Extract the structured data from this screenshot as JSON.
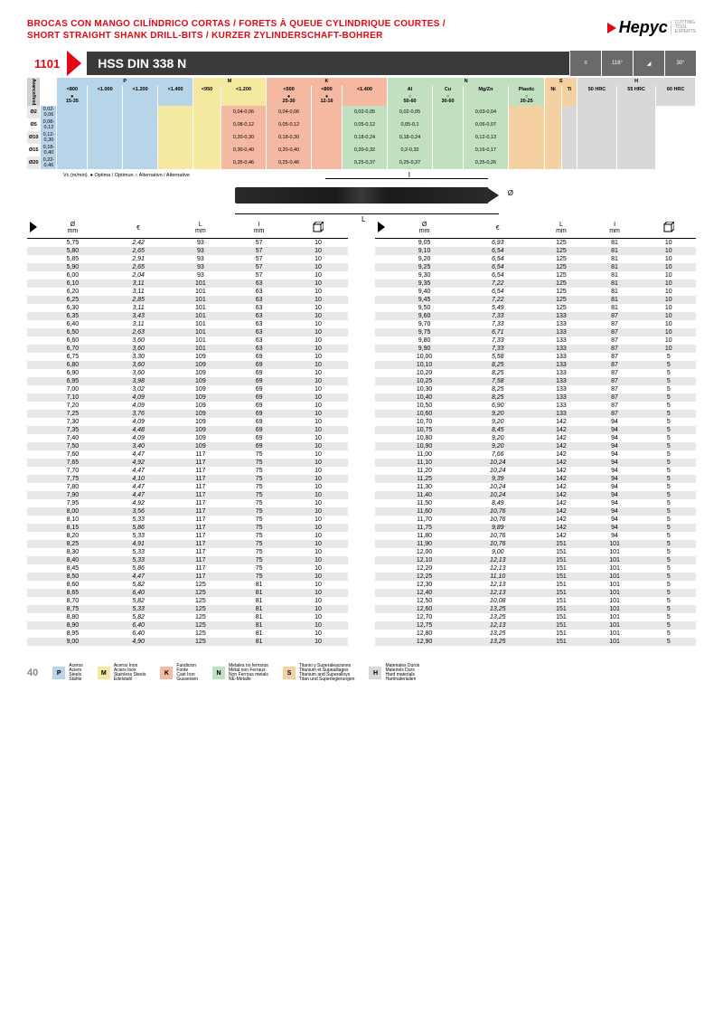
{
  "header": {
    "title_line1": "BROCAS CON MANGO CILÍNDRICO CORTAS / FORETS À QUEUE CYLINDRIQUE COURTES /",
    "title_line2": "SHORT STRAIGHT SHANK DRILL-BITS / KURZER ZYLINDERSCHAFT-BOHRER",
    "logo_text": "Hepyc",
    "logo_sub": "CUTTING\nTOOL\nEXPERTS"
  },
  "product": {
    "code": "1101",
    "name": "HSS DIN 338 N",
    "angle1": "118°",
    "angle2": "30°"
  },
  "spec_categories": {
    "P": {
      "color": "#b8d4e8",
      "sub": [
        "<800",
        "<1.000",
        "<1.200",
        "<1.400"
      ],
      "marks": [
        "●\n15-35",
        "",
        "",
        ""
      ]
    },
    "M": {
      "color": "#f5e8a0",
      "sub": [
        "<950",
        "<1.200"
      ],
      "marks": [
        "",
        ""
      ]
    },
    "K": {
      "color": "#f5b8a0",
      "sub": [
        "<500",
        "<800",
        "<1.400"
      ],
      "marks": [
        "●\n25-30",
        "●\n12-16",
        ""
      ]
    },
    "N": {
      "color": "#c0e0c0",
      "sub": [
        "Al",
        "Cu",
        "Mg/Zn",
        "Plastic"
      ],
      "marks": [
        "○\n50-60",
        "○\n30-60",
        "",
        "○\n20-25"
      ]
    },
    "S": {
      "color": "#f5d0a0",
      "sub": [
        "Ni",
        "Ti"
      ],
      "marks": [
        "",
        ""
      ]
    },
    "H": {
      "color": "#d8d8d8",
      "sub": [
        "50 HRC",
        "55 HRC",
        "60 HRC"
      ],
      "marks": [
        "",
        "",
        ""
      ]
    }
  },
  "feed_rows": [
    {
      "d": "Ø2",
      "P": "0,02-0,06",
      "K1": "0,04-0,06",
      "K2": "0,04-0,06",
      "N1": "0,02-0,05",
      "N2": "0,02-0,05",
      "N4": "0,03-0,04"
    },
    {
      "d": "Ø5",
      "P": "0,08-0,12",
      "K1": "0,08-0,12",
      "K2": "0,05-0,12",
      "N1": "0,05-0,12",
      "N2": "0,05-0,1",
      "N4": "0,06-0,07"
    },
    {
      "d": "Ø10",
      "P": "0,12-0,30",
      "K1": "0,20-0,30",
      "K2": "0,18-0,30",
      "N1": "0,18-0,24",
      "N2": "0,18-0,24",
      "N4": "0,12-0,13"
    },
    {
      "d": "Ø15",
      "P": "0,18-0,40",
      "K1": "0,30-0,40",
      "K2": "0,20-0,40",
      "N1": "0,20-0,32",
      "N2": "0,2-0,32",
      "N4": "0,16-0,17"
    },
    {
      "d": "Ø20",
      "P": "0,22-0,46",
      "K1": "0,35-0,46",
      "K2": "0,25-0,46",
      "N1": "0,25-0,37",
      "N2": "0,25-0,37",
      "N4": "0,25-0,26"
    }
  ],
  "note": "Vc (m/min). ● Optima / Optimun ○ Alternativo / Alternative",
  "feed_label": "Avance/feed",
  "table_headers": {
    "dia": "Ø\nmm",
    "euro": "€",
    "L": "L\nmm",
    "I": "I\nmm"
  },
  "left_data": [
    [
      "5,75",
      "2,42",
      "93",
      "57",
      "10"
    ],
    [
      "5,80",
      "2,65",
      "93",
      "57",
      "10"
    ],
    [
      "5,85",
      "2,91",
      "93",
      "57",
      "10"
    ],
    [
      "5,90",
      "2,65",
      "93",
      "57",
      "10"
    ],
    [
      "6,00",
      "2,04",
      "93",
      "57",
      "10"
    ],
    [
      "6,10",
      "3,11",
      "101",
      "63",
      "10"
    ],
    [
      "6,20",
      "3,11",
      "101",
      "63",
      "10"
    ],
    [
      "6,25",
      "2,85",
      "101",
      "63",
      "10"
    ],
    [
      "6,30",
      "3,11",
      "101",
      "63",
      "10"
    ],
    [
      "6,35",
      "3,43",
      "101",
      "63",
      "10"
    ],
    [
      "6,40",
      "3,11",
      "101",
      "63",
      "10"
    ],
    [
      "6,50",
      "2,63",
      "101",
      "63",
      "10"
    ],
    [
      "6,60",
      "3,60",
      "101",
      "63",
      "10"
    ],
    [
      "6,70",
      "3,60",
      "101",
      "63",
      "10"
    ],
    [
      "6,75",
      "3,30",
      "109",
      "69",
      "10"
    ],
    [
      "6,80",
      "3,60",
      "109",
      "69",
      "10"
    ],
    [
      "6,90",
      "3,60",
      "109",
      "69",
      "10"
    ],
    [
      "6,95",
      "3,98",
      "109",
      "69",
      "10"
    ],
    [
      "7,00",
      "3,02",
      "109",
      "69",
      "10"
    ],
    [
      "7,10",
      "4,09",
      "109",
      "69",
      "10"
    ],
    [
      "7,20",
      "4,09",
      "109",
      "69",
      "10"
    ],
    [
      "7,25",
      "3,76",
      "109",
      "69",
      "10"
    ],
    [
      "7,30",
      "4,09",
      "109",
      "69",
      "10"
    ],
    [
      "7,35",
      "4,48",
      "109",
      "69",
      "10"
    ],
    [
      "7,40",
      "4,09",
      "109",
      "69",
      "10"
    ],
    [
      "7,50",
      "3,40",
      "109",
      "69",
      "10"
    ],
    [
      "7,60",
      "4,47",
      "117",
      "75",
      "10"
    ],
    [
      "7,65",
      "4,92",
      "117",
      "75",
      "10"
    ],
    [
      "7,70",
      "4,47",
      "117",
      "75",
      "10"
    ],
    [
      "7,75",
      "4,10",
      "117",
      "75",
      "10"
    ],
    [
      "7,80",
      "4,47",
      "117",
      "75",
      "10"
    ],
    [
      "7,90",
      "4,47",
      "117",
      "75",
      "10"
    ],
    [
      "7,95",
      "4,92",
      "117",
      "75",
      "10"
    ],
    [
      "8,00",
      "3,56",
      "117",
      "75",
      "10"
    ],
    [
      "8,10",
      "5,33",
      "117",
      "75",
      "10"
    ],
    [
      "8,15",
      "5,86",
      "117",
      "75",
      "10"
    ],
    [
      "8,20",
      "5,33",
      "117",
      "75",
      "10"
    ],
    [
      "8,25",
      "4,91",
      "117",
      "75",
      "10"
    ],
    [
      "8,30",
      "5,33",
      "117",
      "75",
      "10"
    ],
    [
      "8,40",
      "5,33",
      "117",
      "75",
      "10"
    ],
    [
      "8,45",
      "5,86",
      "117",
      "75",
      "10"
    ],
    [
      "8,50",
      "4,47",
      "117",
      "75",
      "10"
    ],
    [
      "8,60",
      "5,82",
      "125",
      "81",
      "10"
    ],
    [
      "8,65",
      "6,40",
      "125",
      "81",
      "10"
    ],
    [
      "8,70",
      "5,82",
      "125",
      "81",
      "10"
    ],
    [
      "8,75",
      "5,33",
      "125",
      "81",
      "10"
    ],
    [
      "8,80",
      "5,82",
      "125",
      "81",
      "10"
    ],
    [
      "8,90",
      "6,40",
      "125",
      "81",
      "10"
    ],
    [
      "8,95",
      "6,40",
      "125",
      "81",
      "10"
    ],
    [
      "9,00",
      "4,90",
      "125",
      "81",
      "10"
    ]
  ],
  "right_data": [
    [
      "9,05",
      "6,93",
      "125",
      "81",
      "10"
    ],
    [
      "9,10",
      "6,54",
      "125",
      "81",
      "10"
    ],
    [
      "9,20",
      "6,54",
      "125",
      "81",
      "10"
    ],
    [
      "9,25",
      "6,54",
      "125",
      "81",
      "10"
    ],
    [
      "9,30",
      "6,54",
      "125",
      "81",
      "10"
    ],
    [
      "9,35",
      "7,22",
      "125",
      "81",
      "10"
    ],
    [
      "9,40",
      "6,54",
      "125",
      "81",
      "10"
    ],
    [
      "9,45",
      "7,22",
      "125",
      "81",
      "10"
    ],
    [
      "9,50",
      "5,49",
      "125",
      "81",
      "10"
    ],
    [
      "9,60",
      "7,33",
      "133",
      "87",
      "10"
    ],
    [
      "9,70",
      "7,33",
      "133",
      "87",
      "10"
    ],
    [
      "9,75",
      "6,71",
      "133",
      "87",
      "10"
    ],
    [
      "9,80",
      "7,33",
      "133",
      "87",
      "10"
    ],
    [
      "9,90",
      "7,33",
      "133",
      "87",
      "10"
    ],
    [
      "10,00",
      "5,58",
      "133",
      "87",
      "5"
    ],
    [
      "10,10",
      "8,25",
      "133",
      "87",
      "5"
    ],
    [
      "10,20",
      "8,25",
      "133",
      "87",
      "5"
    ],
    [
      "10,25",
      "7,58",
      "133",
      "87",
      "5"
    ],
    [
      "10,30",
      "8,25",
      "133",
      "87",
      "5"
    ],
    [
      "10,40",
      "8,25",
      "133",
      "87",
      "5"
    ],
    [
      "10,50",
      "6,90",
      "133",
      "87",
      "5"
    ],
    [
      "10,60",
      "9,20",
      "133",
      "87",
      "5"
    ],
    [
      "10,70",
      "9,20",
      "142",
      "94",
      "5"
    ],
    [
      "10,75",
      "8,45",
      "142",
      "94",
      "5"
    ],
    [
      "10,80",
      "9,20",
      "142",
      "94",
      "5"
    ],
    [
      "10,90",
      "9,20",
      "142",
      "94",
      "5"
    ],
    [
      "11,00",
      "7,66",
      "142",
      "94",
      "5"
    ],
    [
      "11,10",
      "10,24",
      "142",
      "94",
      "5"
    ],
    [
      "11,20",
      "10,24",
      "142",
      "94",
      "5"
    ],
    [
      "11,25",
      "9,39",
      "142",
      "94",
      "5"
    ],
    [
      "11,30",
      "10,24",
      "142",
      "94",
      "5"
    ],
    [
      "11,40",
      "10,24",
      "142",
      "94",
      "5"
    ],
    [
      "11,50",
      "8,49",
      "142",
      "94",
      "5"
    ],
    [
      "11,60",
      "10,76",
      "142",
      "94",
      "5"
    ],
    [
      "11,70",
      "10,76",
      "142",
      "94",
      "5"
    ],
    [
      "11,75",
      "9,89",
      "142",
      "94",
      "5"
    ],
    [
      "11,80",
      "10,76",
      "142",
      "94",
      "5"
    ],
    [
      "11,90",
      "10,76",
      "151",
      "101",
      "5"
    ],
    [
      "12,00",
      "9,00",
      "151",
      "101",
      "5"
    ],
    [
      "12,10",
      "12,13",
      "151",
      "101",
      "5"
    ],
    [
      "12,20",
      "12,13",
      "151",
      "101",
      "5"
    ],
    [
      "12,25",
      "11,10",
      "151",
      "101",
      "5"
    ],
    [
      "12,30",
      "12,13",
      "151",
      "101",
      "5"
    ],
    [
      "12,40",
      "12,13",
      "151",
      "101",
      "5"
    ],
    [
      "12,50",
      "10,08",
      "151",
      "101",
      "5"
    ],
    [
      "12,60",
      "13,25",
      "151",
      "101",
      "5"
    ],
    [
      "12,70",
      "13,25",
      "151",
      "101",
      "5"
    ],
    [
      "12,75",
      "12,13",
      "151",
      "101",
      "5"
    ],
    [
      "12,80",
      "13,25",
      "151",
      "101",
      "5"
    ],
    [
      "12,90",
      "13,25",
      "151",
      "101",
      "5"
    ]
  ],
  "legend": [
    {
      "code": "P",
      "color": "#b8d4e8",
      "text": "Aceros\nAciers\nSteels\nStähle"
    },
    {
      "code": "M",
      "color": "#f5e8a0",
      "text": "Aceros Inox\nAciers Inox\nStainless Steels\nEdelstahl"
    },
    {
      "code": "K",
      "color": "#f5b8a0",
      "text": "Fundicion\nFonte\nCast Iron\nGusseisen"
    },
    {
      "code": "N",
      "color": "#c0e0c0",
      "text": "Metales no ferrosos\nMétal non Ferraux\nNon Ferrous metals\nNE-Metalle"
    },
    {
      "code": "S",
      "color": "#f5d0a0",
      "text": "Titanio y Superaleaciones\nTitanium et Supealliages\nTitanium and Superalloys\nTitan und Superlegierungen"
    },
    {
      "code": "H",
      "color": "#d8d8d8",
      "text": "Materiales Duros\nMateriels Durs\nHard materials\nHartmaterialien"
    }
  ],
  "page": "40"
}
